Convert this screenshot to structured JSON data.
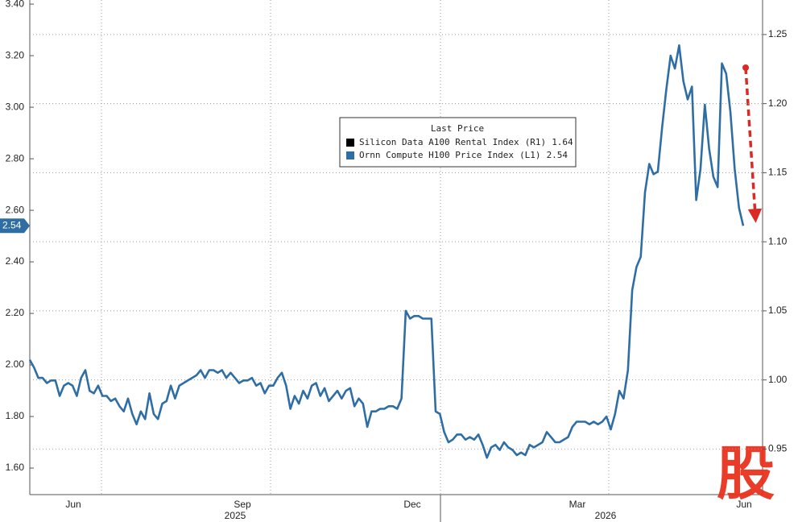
{
  "chart_data": {
    "type": "line",
    "legend_title": "Last Price",
    "x_labels": [
      "Jun",
      "Sep",
      "Dec",
      "Mar",
      "Jun"
    ],
    "year_labels": [
      "2025",
      "2026"
    ],
    "watermark": "股",
    "ylim": [
      1.497,
      3.416
    ],
    "yticks": [
      {
        "value": 1.6,
        "label": "1.60"
      },
      {
        "value": 1.8,
        "label": "1.80"
      },
      {
        "value": 2,
        "label": "2.00"
      },
      {
        "value": 2.2,
        "label": "2.20"
      },
      {
        "value": 2.4,
        "label": "2.40"
      },
      {
        "value": 2.6,
        "label": "2.60"
      },
      {
        "value": 2.8,
        "label": "2.80"
      },
      {
        "value": 3,
        "label": "3.00"
      },
      {
        "value": 3.2,
        "label": "3.20"
      },
      {
        "value": 3.4,
        "label": "3.40"
      }
    ],
    "y2lim": [
      0.917,
      1.275
    ],
    "y2ticks": [
      0.95,
      {
        "value": 1,
        "label": "1.00"
      },
      1.05,
      {
        "value": 1.1,
        "label": "1.10"
      },
      1.15,
      {
        "value": 1.2,
        "label": "1.20"
      },
      1.25
    ],
    "grid": true,
    "series": [
      {
        "name": "Silicon Data A100 Rental Index",
        "axis_tag": "(R1)",
        "axis": "y2",
        "color": "#000000",
        "last": 1.64
      },
      {
        "name": "Ornn Compute H100 Price Index",
        "axis_tag": "(L1)",
        "color": "#2f6ea5",
        "last": 2.54,
        "values": [
          2.02,
          1.99,
          1.95,
          1.95,
          1.93,
          1.94,
          1.94,
          1.88,
          1.92,
          1.93,
          1.92,
          1.88,
          1.95,
          1.98,
          1.9,
          1.89,
          1.92,
          1.88,
          1.88,
          1.86,
          1.87,
          1.84,
          1.82,
          1.87,
          1.81,
          1.77,
          1.82,
          1.79,
          1.89,
          1.81,
          1.79,
          1.85,
          1.86,
          1.92,
          1.87,
          1.92,
          1.93,
          1.94,
          1.95,
          1.96,
          1.98,
          1.95,
          1.98,
          1.98,
          1.97,
          1.98,
          1.95,
          1.97,
          1.95,
          1.93,
          1.94,
          1.94,
          1.95,
          1.92,
          1.93,
          1.89,
          1.92,
          1.92,
          1.95,
          1.97,
          1.92,
          1.83,
          1.88,
          1.85,
          1.9,
          1.87,
          1.92,
          1.93,
          1.88,
          1.91,
          1.86,
          1.88,
          1.9,
          1.87,
          1.9,
          1.91,
          1.84,
          1.87,
          1.85,
          1.76,
          1.82,
          1.82,
          1.83,
          1.83,
          1.84,
          1.84,
          1.83,
          1.87,
          2.21,
          2.18,
          2.19,
          2.19,
          2.18,
          2.18,
          2.18,
          1.82,
          1.81,
          1.74,
          1.7,
          1.71,
          1.73,
          1.73,
          1.71,
          1.72,
          1.71,
          1.73,
          1.69,
          1.64,
          1.68,
          1.69,
          1.67,
          1.7,
          1.68,
          1.67,
          1.65,
          1.66,
          1.65,
          1.69,
          1.68,
          1.69,
          1.7,
          1.74,
          1.72,
          1.7,
          1.7,
          1.71,
          1.72,
          1.76,
          1.78,
          1.78,
          1.78,
          1.77,
          1.78,
          1.77,
          1.78,
          1.8,
          1.75,
          1.81,
          1.9,
          1.87,
          1.98,
          2.29,
          2.38,
          2.42,
          2.67,
          2.78,
          2.74,
          2.75,
          2.92,
          3.07,
          3.2,
          3.15,
          3.24,
          3.1,
          3.03,
          3.08,
          2.64,
          2.76,
          3.01,
          2.84,
          2.73,
          2.69,
          3.17,
          3.13,
          2.98,
          2.76,
          2.61,
          2.54
        ]
      }
    ]
  }
}
